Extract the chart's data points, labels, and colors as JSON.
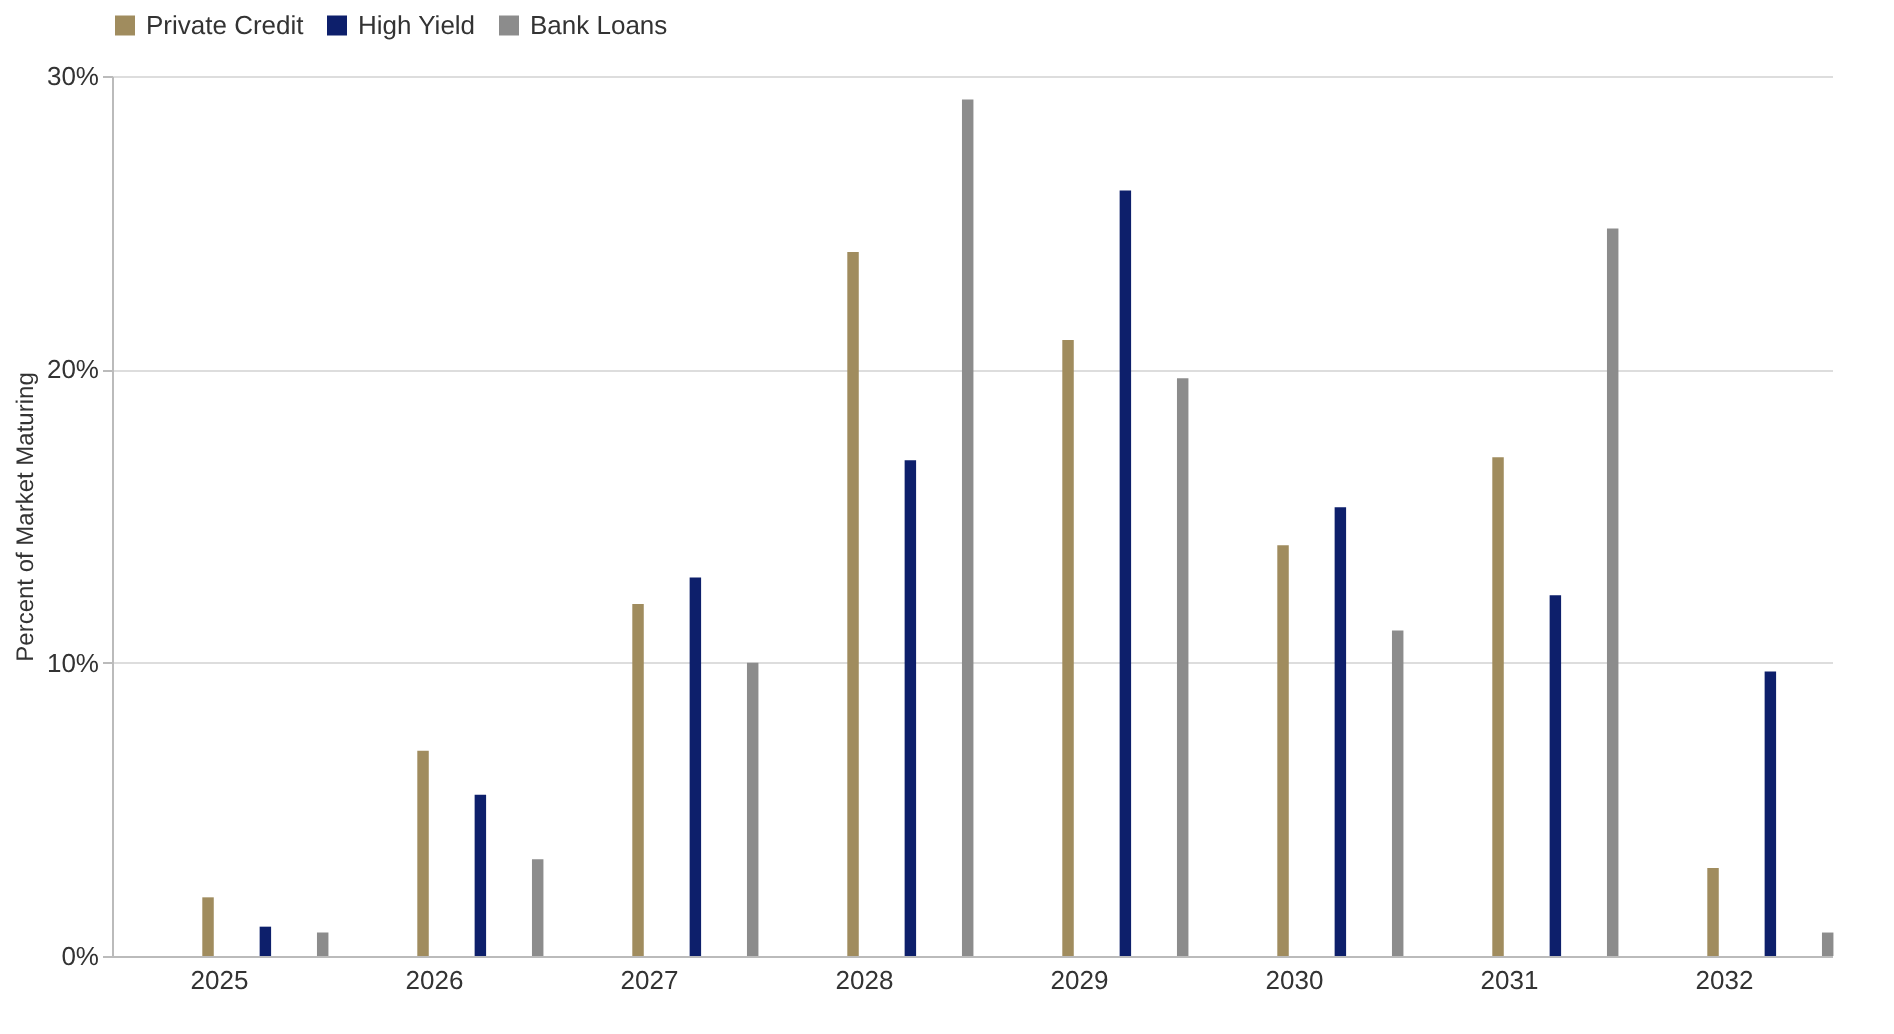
{
  "chart_data": {
    "type": "bar",
    "ylabel": "Percent of Market Maturing",
    "categories": [
      "2025",
      "2026",
      "2027",
      "2028",
      "2029",
      "2030",
      "2031",
      "2032"
    ],
    "series": [
      {
        "name": "Private Credit",
        "color": "#a08c5e",
        "values": [
          2,
          7,
          12,
          24,
          21,
          14,
          17,
          3
        ]
      },
      {
        "name": "High Yield",
        "color": "#0d1f6b",
        "values": [
          1,
          5.5,
          12.9,
          16.9,
          26.1,
          15.3,
          12.3,
          9.7
        ]
      },
      {
        "name": "Bank Loans",
        "color": "#8c8c8c",
        "values": [
          0.8,
          3.3,
          10,
          29.2,
          19.7,
          11.1,
          24.8,
          0.8
        ]
      }
    ],
    "ylim": [
      0,
      30
    ],
    "yticks": [
      {
        "value": 0,
        "label": "0%"
      },
      {
        "value": 10,
        "label": "10%"
      },
      {
        "value": 20,
        "label": "20%"
      },
      {
        "value": 30,
        "label": "30%"
      }
    ],
    "grid": "y",
    "legend": "top"
  }
}
